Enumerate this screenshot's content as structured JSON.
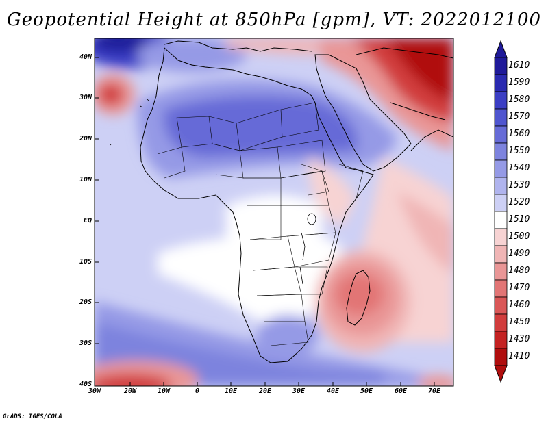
{
  "title": "Geopotential Height at 850hPa [gpm], VT: 2022012100",
  "footer": "GrADS: IGES/COLA",
  "lat_labels": [
    "40N",
    "30N",
    "20N",
    "10N",
    "EQ",
    "10S",
    "20S",
    "30S",
    "40S"
  ],
  "lon_labels": [
    "30W",
    "20W",
    "10W",
    "0",
    "10E",
    "20E",
    "30E",
    "40E",
    "50E",
    "60E",
    "70E"
  ],
  "colorbar": {
    "labels": [
      "1610",
      "1590",
      "1580",
      "1570",
      "1560",
      "1550",
      "1540",
      "1530",
      "1520",
      "1510",
      "1500",
      "1490",
      "1480",
      "1470",
      "1460",
      "1450",
      "1430",
      "1410"
    ],
    "colors": [
      "#1f1a99",
      "#2a2ab0",
      "#3b3ec4",
      "#4f55cf",
      "#666bd7",
      "#7d83de",
      "#959ae6",
      "#b0b4ee",
      "#cdd0f5",
      "#ffffff",
      "#f7d3d3",
      "#f0b5b5",
      "#e99696",
      "#e27575",
      "#da5757",
      "#d13c3c",
      "#c42222",
      "#b00e0e"
    ]
  }
}
